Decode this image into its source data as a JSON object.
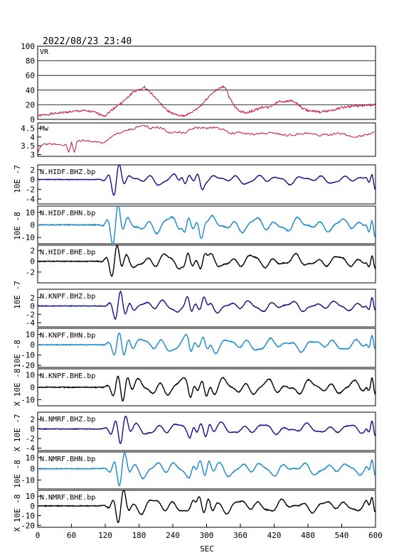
{
  "title": "2022/08/23 23:40",
  "xlabel": "SEC",
  "x_ticks": [
    0,
    60,
    120,
    180,
    240,
    300,
    360,
    420,
    480,
    540,
    600
  ],
  "colors": {
    "vr": "#cc1144",
    "mw": "#cc1144",
    "bhz": "#12128a",
    "bhn": "#1a88cc",
    "bhe": "#000000",
    "frame": "#000000",
    "grid": "#000000"
  },
  "chart_data": [
    {
      "type": "line",
      "name": "VR",
      "xlim": [
        0,
        600
      ],
      "ylim": [
        0,
        100
      ],
      "yticks": [
        0,
        20,
        40,
        60,
        80,
        100
      ],
      "grid": true,
      "x": [
        0,
        40,
        80,
        100,
        110,
        120,
        130,
        140,
        150,
        160,
        170,
        180,
        190,
        200,
        210,
        220,
        230,
        240,
        250,
        260,
        270,
        280,
        290,
        300,
        310,
        320,
        330,
        335,
        340,
        350,
        360,
        370,
        380,
        390,
        400,
        410,
        420,
        430,
        440,
        450,
        460,
        470,
        480,
        500,
        520,
        540,
        560,
        580,
        600
      ],
      "y": [
        5,
        9,
        12,
        10,
        7,
        5,
        12,
        18,
        23,
        30,
        38,
        40,
        44,
        37,
        29,
        20,
        12,
        8,
        5,
        5,
        8,
        13,
        19,
        28,
        36,
        41,
        45,
        42,
        30,
        17,
        11,
        9,
        11,
        14,
        17,
        16,
        21,
        25,
        24,
        26,
        22,
        15,
        12,
        10,
        12,
        16,
        18,
        19,
        20
      ]
    },
    {
      "type": "line",
      "name": "Mw",
      "xlim": [
        0,
        600
      ],
      "ylim": [
        2.9,
        4.8
      ],
      "yticks": [
        3.0,
        3.5,
        4.0,
        4.5
      ],
      "grid": false,
      "x": [
        0,
        5,
        10,
        30,
        50,
        55,
        60,
        65,
        70,
        80,
        100,
        110,
        120,
        130,
        140,
        150,
        160,
        170,
        180,
        190,
        200,
        210,
        220,
        230,
        240,
        250,
        260,
        270,
        280,
        290,
        300,
        310,
        320,
        330,
        340,
        360,
        380,
        400,
        420,
        440,
        460,
        480,
        500,
        520,
        540,
        560,
        580,
        600
      ],
      "y": [
        3.05,
        3.5,
        3.55,
        3.6,
        3.55,
        3.1,
        3.7,
        3.1,
        3.75,
        3.8,
        3.75,
        3.7,
        3.7,
        3.95,
        4.2,
        4.25,
        4.4,
        4.45,
        4.6,
        4.65,
        4.5,
        4.55,
        4.5,
        4.3,
        4.25,
        4.3,
        4.2,
        4.4,
        4.55,
        4.5,
        4.5,
        4.55,
        4.5,
        4.4,
        4.2,
        4.25,
        4.15,
        4.2,
        4.25,
        4.1,
        4.15,
        4.2,
        4.1,
        4.15,
        4.2,
        4.0,
        4.1,
        4.3
      ]
    },
    {
      "type": "line",
      "label": "N.HIDF.BHZ.bp",
      "ylim": [
        -5,
        3
      ],
      "yticks": [
        -4,
        -2,
        0,
        2
      ]
    },
    {
      "type": "line",
      "label": "N.HIDF.BHN.bp",
      "ylim": [
        -15,
        15
      ],
      "yticks": [
        -10,
        0,
        10
      ]
    },
    {
      "type": "line",
      "label": "N.HIDF.BHE.bp",
      "ylim": [
        -4,
        3
      ],
      "yticks": [
        -2,
        0,
        2
      ]
    },
    {
      "type": "line",
      "label": "N.KNPF.BHZ.bp",
      "ylim": [
        -5,
        4
      ],
      "yticks": [
        -4,
        -2,
        0,
        2
      ]
    },
    {
      "type": "line",
      "label": "N.KNPF.BHN.bp",
      "ylim": [
        -22,
        16
      ],
      "yticks": [
        -20,
        -10,
        0,
        10
      ]
    },
    {
      "type": "line",
      "label": "N.KNPF.BHE.bp",
      "ylim": [
        -15,
        15
      ],
      "yticks": [
        -10,
        0,
        10
      ]
    },
    {
      "type": "line",
      "label": "N.NMRF.BHZ.bp",
      "ylim": [
        -4.5,
        3.5
      ],
      "yticks": [
        -4,
        -2,
        0,
        2
      ]
    },
    {
      "type": "line",
      "label": "N.NMRF.BHN.bp",
      "ylim": [
        -18,
        15
      ],
      "yticks": [
        -10,
        0,
        10
      ]
    },
    {
      "type": "line",
      "label": "N.NMRF.BHE.bp",
      "ylim": [
        -22,
        16
      ],
      "yticks": [
        -20,
        -10,
        0,
        10
      ]
    }
  ],
  "unit_labels": [
    "10E -7",
    "10E -8",
    "10E -7",
    "10E -8",
    "X 10E -8",
    "X 10E -7",
    "10E -8",
    "X 10E -8"
  ]
}
